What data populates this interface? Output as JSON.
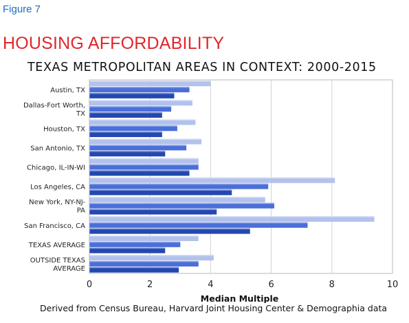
{
  "figure_label": "Figure 7",
  "figure_title": "HOUSING AFFORDABILITY",
  "source_note": "Derived from Census Bureau, Harvard Joint Housing Center & Demographia data",
  "chart_data": {
    "type": "bar",
    "orientation": "horizontal",
    "title": "TEXAS METROPOLITAN AREAS IN CONTEXT: 2000-2015",
    "xlabel": "Median Multiple",
    "ylabel": "",
    "xlim": [
      0,
      10
    ],
    "xticks": [
      "0",
      "2",
      "4",
      "6",
      "8",
      "10"
    ],
    "grid": true,
    "legend": "none",
    "categories": [
      [
        "Austin, TX"
      ],
      [
        "Dallas-Fort Worth,",
        "TX"
      ],
      [
        "Houston, TX"
      ],
      [
        "San Antonio, TX"
      ],
      [
        "Chicago, IL-IN-WI"
      ],
      [
        "Los Angeles, CA"
      ],
      [
        "New York, NY-NJ-",
        "PA"
      ],
      [
        "San Francisco, CA"
      ],
      [
        "TEXAS AVERAGE"
      ],
      [
        "OUTSIDE TEXAS",
        "AVERAGE"
      ]
    ],
    "series": [
      {
        "values": [
          4.0,
          3.4,
          3.5,
          3.7,
          3.6,
          8.1,
          5.8,
          9.4,
          3.6,
          4.1
        ],
        "color": "#b3c2ec"
      },
      {
        "values": [
          3.3,
          2.7,
          2.9,
          3.2,
          3.6,
          5.9,
          6.1,
          7.2,
          3.0,
          3.6
        ],
        "color": "#4a6fd9"
      },
      {
        "values": [
          2.8,
          2.4,
          2.4,
          2.5,
          3.3,
          4.7,
          4.2,
          5.3,
          2.5,
          2.95
        ],
        "color": "#2448b0"
      }
    ]
  }
}
